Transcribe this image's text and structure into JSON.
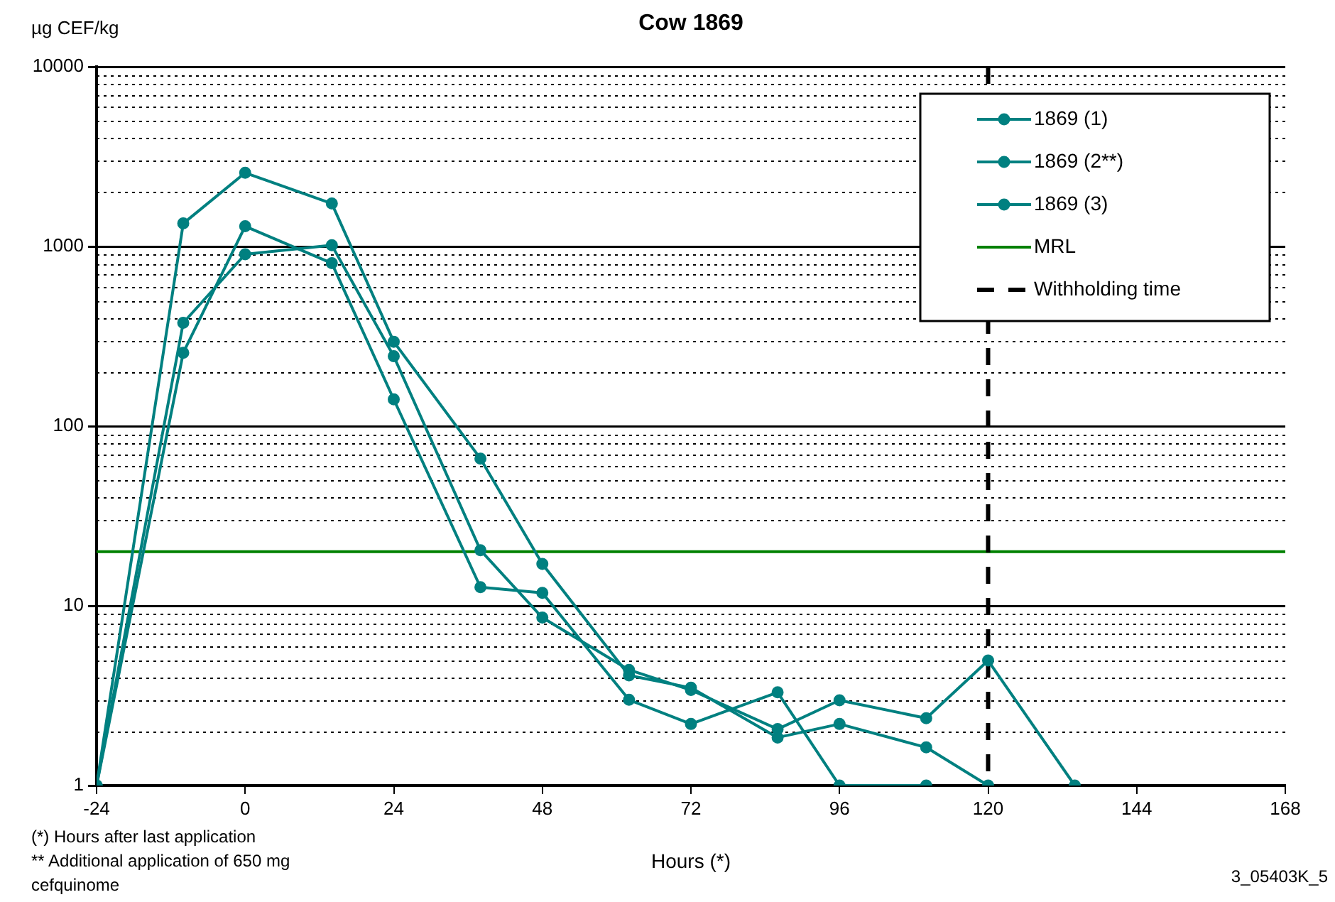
{
  "chart_data": {
    "type": "line",
    "title": "Cow 1869",
    "xlabel": "Hours (*)",
    "ylabel": "µg CEF/kg",
    "annotations": [
      "(*) Hours after last application",
      "**  Additional application of 650 mg cefquinome",
      "3_05403K_5"
    ],
    "series": [
      {
        "name": "1869 (1)",
        "color": "#008080",
        "x": [
          -24,
          -10,
          0,
          14,
          24,
          38,
          48,
          62,
          72,
          86,
          96,
          110
        ],
        "values": [
          1,
          256,
          1295,
          807,
          141,
          12.7,
          11.8,
          3.0,
          2.2,
          3.3,
          1,
          1
        ]
      },
      {
        "name": "1869 (2**)",
        "color": "#008080",
        "x": [
          -24,
          -10,
          0,
          14,
          24,
          38,
          48,
          62,
          72,
          86,
          96,
          110,
          120
        ],
        "values": [
          1,
          1343,
          2570,
          1733,
          295,
          66,
          17.1,
          4.1,
          3.5,
          1.85,
          2.2,
          1.63,
          1
        ]
      },
      {
        "name": "1869 (3)",
        "color": "#008080",
        "x": [
          -24,
          -10,
          0,
          14,
          24,
          38,
          48,
          62,
          72,
          86,
          96,
          110,
          120,
          134
        ],
        "values": [
          1,
          376,
          905,
          1015,
          245,
          20.4,
          8.6,
          4.4,
          3.4,
          2.06,
          2.98,
          2.37,
          4.96,
          1
        ]
      }
    ],
    "ref_lines": [
      {
        "axis": "y",
        "value": 20,
        "label": "MRL",
        "color": "#008000",
        "line_style": "solid"
      },
      {
        "axis": "x",
        "value": 120,
        "label": "Withholding time",
        "color": "#000000",
        "line_style": "dashed"
      }
    ],
    "log": "y",
    "xlim": [
      -24,
      168
    ],
    "xticks": [
      -24,
      0,
      24,
      48,
      72,
      96,
      120,
      144,
      168
    ],
    "ylim": [
      1,
      10000
    ],
    "yticks": [
      1,
      10,
      100,
      1000,
      10000
    ],
    "grid": "y",
    "legend": "top right",
    "marker": "circle",
    "line_style": "solid"
  }
}
